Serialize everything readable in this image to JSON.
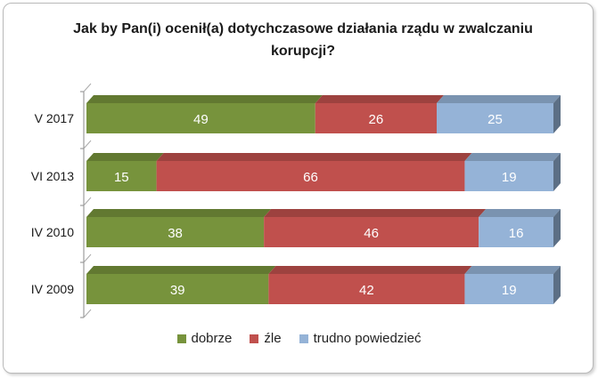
{
  "chart_data": {
    "type": "bar",
    "orientation": "horizontal",
    "stacked": true,
    "title": "Jak by Pan(i) ocenił(a) dotychczasowe działania rządu w zwalczaniu korupcji?",
    "categories": [
      "V 2017",
      "VI 2013",
      "IV 2010",
      "IV 2009"
    ],
    "series": [
      {
        "name": "dobrze",
        "values": [
          49,
          15,
          38,
          39
        ],
        "color": "#77933c"
      },
      {
        "name": "źle",
        "values": [
          26,
          66,
          46,
          42
        ],
        "color": "#c0504d"
      },
      {
        "name": "trudno powiedzieć",
        "values": [
          25,
          19,
          16,
          19
        ],
        "color": "#95b3d7"
      }
    ],
    "xlim": [
      0,
      100
    ],
    "legend_position": "bottom",
    "grid": false
  }
}
